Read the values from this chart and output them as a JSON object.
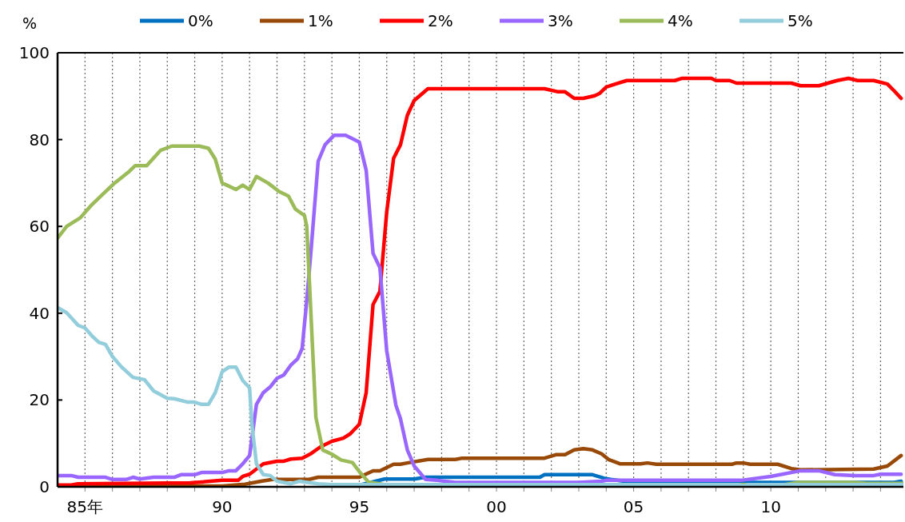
{
  "chart_data": {
    "type": "line",
    "ylabel": "%",
    "xlim": [
      "1984-01",
      "2014-11"
    ],
    "ylim": [
      0,
      100
    ],
    "yticks": [
      0,
      20,
      40,
      60,
      80,
      100
    ],
    "xticks": [
      {
        "value": "1985",
        "label": "85年"
      },
      {
        "value": "1986",
        "label": null
      },
      {
        "value": "1987",
        "label": null
      },
      {
        "value": "1988",
        "label": null
      },
      {
        "value": "1989",
        "label": null
      },
      {
        "value": "1990",
        "label": "90"
      },
      {
        "value": "1991",
        "label": null
      },
      {
        "value": "1992",
        "label": null
      },
      {
        "value": "1993",
        "label": null
      },
      {
        "value": "1994",
        "label": null
      },
      {
        "value": "1995",
        "label": "95"
      },
      {
        "value": "1996",
        "label": null
      },
      {
        "value": "1997",
        "label": null
      },
      {
        "value": "1998",
        "label": null
      },
      {
        "value": "1999",
        "label": null
      },
      {
        "value": "2000",
        "label": "00"
      },
      {
        "value": "2001",
        "label": null
      },
      {
        "value": "2002",
        "label": null
      },
      {
        "value": "2003",
        "label": null
      },
      {
        "value": "2004",
        "label": null
      },
      {
        "value": "2005",
        "label": "05"
      },
      {
        "value": "2006",
        "label": null
      },
      {
        "value": "2007",
        "label": null
      },
      {
        "value": "2008",
        "label": null
      },
      {
        "value": "2009",
        "label": null
      },
      {
        "value": "2010",
        "label": "10"
      },
      {
        "value": "2011",
        "label": null
      },
      {
        "value": "2012",
        "label": null
      },
      {
        "value": "2013",
        "label": null
      },
      {
        "value": "2014",
        "label": null
      }
    ],
    "grid": "x",
    "legend": "top",
    "series": [
      {
        "name": "0%",
        "color": "#0070c0",
        "x": [
          "1995-01",
          "1995-12",
          "1997-01",
          "1997-06",
          "2001-08",
          "2001-10",
          "2003-07",
          "2003-12",
          "2004-03",
          "2005-01",
          "2014-07",
          "2014-10"
        ],
        "values": [
          0.4,
          1.8,
          1.8,
          2.2,
          2.2,
          2.8,
          2.8,
          2.0,
          1.7,
          1.0,
          1.0,
          1.3
        ]
      },
      {
        "name": "1%",
        "color": "#984807",
        "x": [
          "1984-01",
          "1990-01",
          "1990-11",
          "1991-06",
          "1991-11",
          "1993-03",
          "1993-07",
          "1995-01",
          "1995-07",
          "1995-10",
          "1996-04",
          "1996-07",
          "1996-10",
          "1997-07",
          "1998-07",
          "1998-10",
          "2001-10",
          "2002-03",
          "2002-07",
          "2002-11",
          "2003-03",
          "2003-07",
          "2003-11",
          "2004-02",
          "2004-07",
          "2005-04",
          "2005-07",
          "2005-11",
          "2008-08",
          "2008-10",
          "2009-01",
          "2009-04",
          "2010-04",
          "2010-10",
          "2011-02",
          "2013-10",
          "2014-04",
          "2014-10"
        ],
        "values": [
          0.2,
          0.2,
          0.6,
          1.3,
          1.7,
          1.7,
          2.2,
          2.2,
          3.7,
          3.7,
          5.2,
          5.2,
          5.5,
          6.3,
          6.3,
          6.6,
          6.6,
          7.4,
          7.4,
          8.5,
          8.8,
          8.5,
          7.6,
          6.3,
          5.3,
          5.3,
          5.5,
          5.2,
          5.2,
          5.5,
          5.5,
          5.2,
          5.2,
          4.2,
          3.9,
          4.1,
          4.8,
          7.2
        ]
      },
      {
        "name": "2%",
        "color": "#ff0000",
        "x": [
          "1984-01",
          "1984-07",
          "1984-10",
          "1988-11",
          "1990-01",
          "1990-08",
          "1990-10",
          "1991-01",
          "1991-07",
          "1992-01",
          "1992-04",
          "1992-07",
          "1992-12",
          "1993-04",
          "1993-08",
          "1994-01",
          "1994-06",
          "1994-09",
          "1995-01",
          "1995-04",
          "1995-07",
          "1995-10",
          "1996-01",
          "1996-04",
          "1996-07",
          "1996-10",
          "1997-01",
          "1997-07",
          "2001-10",
          "2002-04",
          "2002-07",
          "2002-11",
          "2003-03",
          "2003-08",
          "2003-10",
          "2004-01",
          "2004-05",
          "2004-10",
          "2006-07",
          "2006-10",
          "2007-11",
          "2008-01",
          "2008-07",
          "2008-10",
          "2010-10",
          "2011-02",
          "2011-10",
          "2012-02",
          "2012-06",
          "2012-11",
          "2013-03",
          "2013-10",
          "2014-04",
          "2014-07",
          "2014-10"
        ],
        "values": [
          0.4,
          0.4,
          0.7,
          0.9,
          1.5,
          1.5,
          2.4,
          2.9,
          5.3,
          5.9,
          5.9,
          6.4,
          6.6,
          7.7,
          9.2,
          10.5,
          11.2,
          12.2,
          14.4,
          21.7,
          42,
          45,
          63.4,
          75.7,
          78.8,
          85.6,
          89,
          91.7,
          91.7,
          91,
          91,
          89.5,
          89.5,
          90.1,
          90.6,
          92.1,
          92.8,
          93.6,
          93.6,
          94.1,
          94.1,
          93.6,
          93.6,
          93,
          93,
          92.4,
          92.4,
          93,
          93.6,
          94.1,
          93.6,
          93.6,
          92.8,
          91.2,
          89.5
        ]
      },
      {
        "name": "3%",
        "color": "#9966ff",
        "x": [
          "1984-01",
          "1984-07",
          "1984-10",
          "1985-10",
          "1986-01",
          "1986-07",
          "1986-10",
          "1987-01",
          "1987-07",
          "1988-04",
          "1988-07",
          "1989-01",
          "1989-04",
          "1990-01",
          "1990-04",
          "1990-07",
          "1990-10",
          "1991-01",
          "1991-04",
          "1991-07",
          "1991-10",
          "1992-01",
          "1992-04",
          "1992-07",
          "1992-10",
          "1992-12",
          "1993-02",
          "1993-04",
          "1993-07",
          "1993-10",
          "1994-02",
          "1994-07",
          "1995-01",
          "1995-04",
          "1995-07",
          "1995-10",
          "1996-01",
          "1996-05",
          "1996-07",
          "1996-10",
          "1997-01",
          "1997-06",
          "1997-11",
          "1998-07",
          "2003-01",
          "2003-11",
          "2004-01",
          "2008-12",
          "2010-01",
          "2011-02",
          "2011-10",
          "2012-05",
          "2013-02",
          "2013-10",
          "2014-01",
          "2014-10"
        ],
        "values": [
          2.6,
          2.6,
          2.2,
          2.2,
          1.7,
          1.7,
          2.2,
          1.8,
          2.2,
          2.2,
          2.8,
          2.8,
          3.3,
          3.3,
          3.7,
          3.7,
          5.3,
          7.2,
          19,
          21.7,
          23,
          25,
          25.8,
          28,
          29.5,
          31.9,
          42.9,
          55.2,
          75,
          78.8,
          81,
          81,
          79.4,
          72.9,
          53.8,
          50.5,
          31.3,
          18.8,
          15.7,
          8.5,
          4.8,
          1.7,
          1.5,
          1.0,
          1.0,
          1.3,
          1.5,
          1.5,
          2.4,
          3.7,
          3.7,
          2.8,
          2.6,
          2.6,
          2.9,
          2.9
        ]
      },
      {
        "name": "4%",
        "color": "#9bbb59",
        "x": [
          "1984-01",
          "1984-05",
          "1984-11",
          "1985-04",
          "1985-09",
          "1986-02",
          "1986-08",
          "1986-11",
          "1987-04",
          "1987-10",
          "1988-03",
          "1988-08",
          "1989-03",
          "1989-07",
          "1989-10",
          "1990-01",
          "1990-07",
          "1990-10",
          "1991-01",
          "1991-04",
          "1991-09",
          "1992-02",
          "1992-06",
          "1992-09",
          "1993-01",
          "1993-02",
          "1993-04",
          "1993-06",
          "1993-09",
          "1994-01",
          "1994-05",
          "1994-10",
          "1995-01",
          "1995-05",
          "1995-12",
          "2010-07",
          "2011-01",
          "2013-01",
          "2013-07",
          "2014-11"
        ],
        "values": [
          57.3,
          60,
          62,
          65,
          67.5,
          70,
          72.5,
          74,
          74,
          77.5,
          78.5,
          78.5,
          78.5,
          78,
          75.5,
          70,
          68.5,
          69.5,
          68.5,
          71.5,
          70,
          68,
          67,
          64,
          62.5,
          60,
          38,
          16,
          8.5,
          7.5,
          6.2,
          5.6,
          3.5,
          1.1,
          0.5,
          0.5,
          1.0,
          1.0,
          0.8,
          0.8
        ]
      },
      {
        "name": "5%",
        "color": "#92cddc",
        "x": [
          "1984-01",
          "1984-05",
          "1984-10",
          "1985-01",
          "1985-04",
          "1985-07",
          "1985-10",
          "1986-01",
          "1986-05",
          "1986-10",
          "1987-03",
          "1987-07",
          "1988-01",
          "1988-04",
          "1988-10",
          "1989-01",
          "1989-04",
          "1989-07",
          "1989-10",
          "1990-01",
          "1990-04",
          "1990-07",
          "1990-10",
          "1991-01",
          "1991-02",
          "1991-04",
          "1991-07",
          "1991-10",
          "1992-01",
          "1992-07",
          "1992-11",
          "1993-01",
          "1993-07",
          "1994-01",
          "2008-11",
          "2009-01",
          "2009-03",
          "2014-11"
        ],
        "values": [
          41.3,
          40.1,
          37.2,
          36.6,
          34.8,
          33.3,
          32.8,
          30,
          27.6,
          25.2,
          24.7,
          22.1,
          20.4,
          20.3,
          19.5,
          19.5,
          19.0,
          19.0,
          21.7,
          26.5,
          27.6,
          27.6,
          24.5,
          22.8,
          14.4,
          5.3,
          2.8,
          2.6,
          1.3,
          0.7,
          1.3,
          1.1,
          0.7,
          0.5,
          0.5,
          0.2,
          0.5,
          0.5
        ]
      }
    ]
  }
}
